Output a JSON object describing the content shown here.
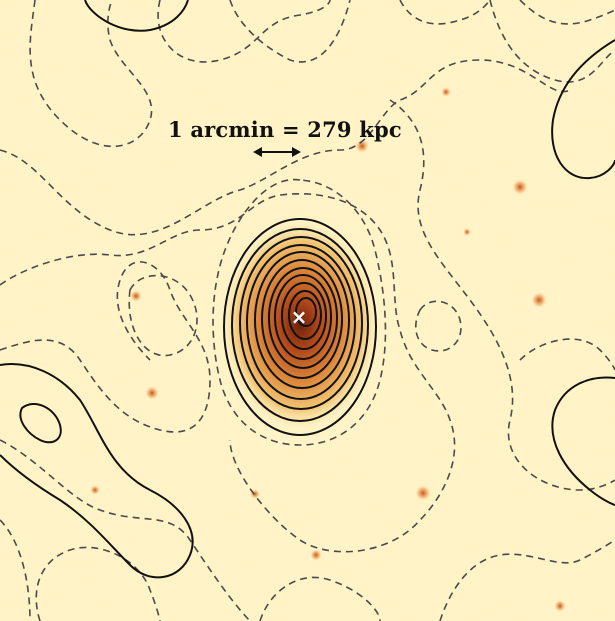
{
  "figure": {
    "scale_bar_label": "1 arcmin = 279 kpc",
    "peak_marker": "×",
    "contour_style": {
      "solid_color": "#111111",
      "dashed_color": "#4a4a4a"
    },
    "colormap": {
      "background": "#fff4c6",
      "low": "#f7d18a",
      "mid": "#d9762a",
      "high": "#7a2a10"
    }
  }
}
